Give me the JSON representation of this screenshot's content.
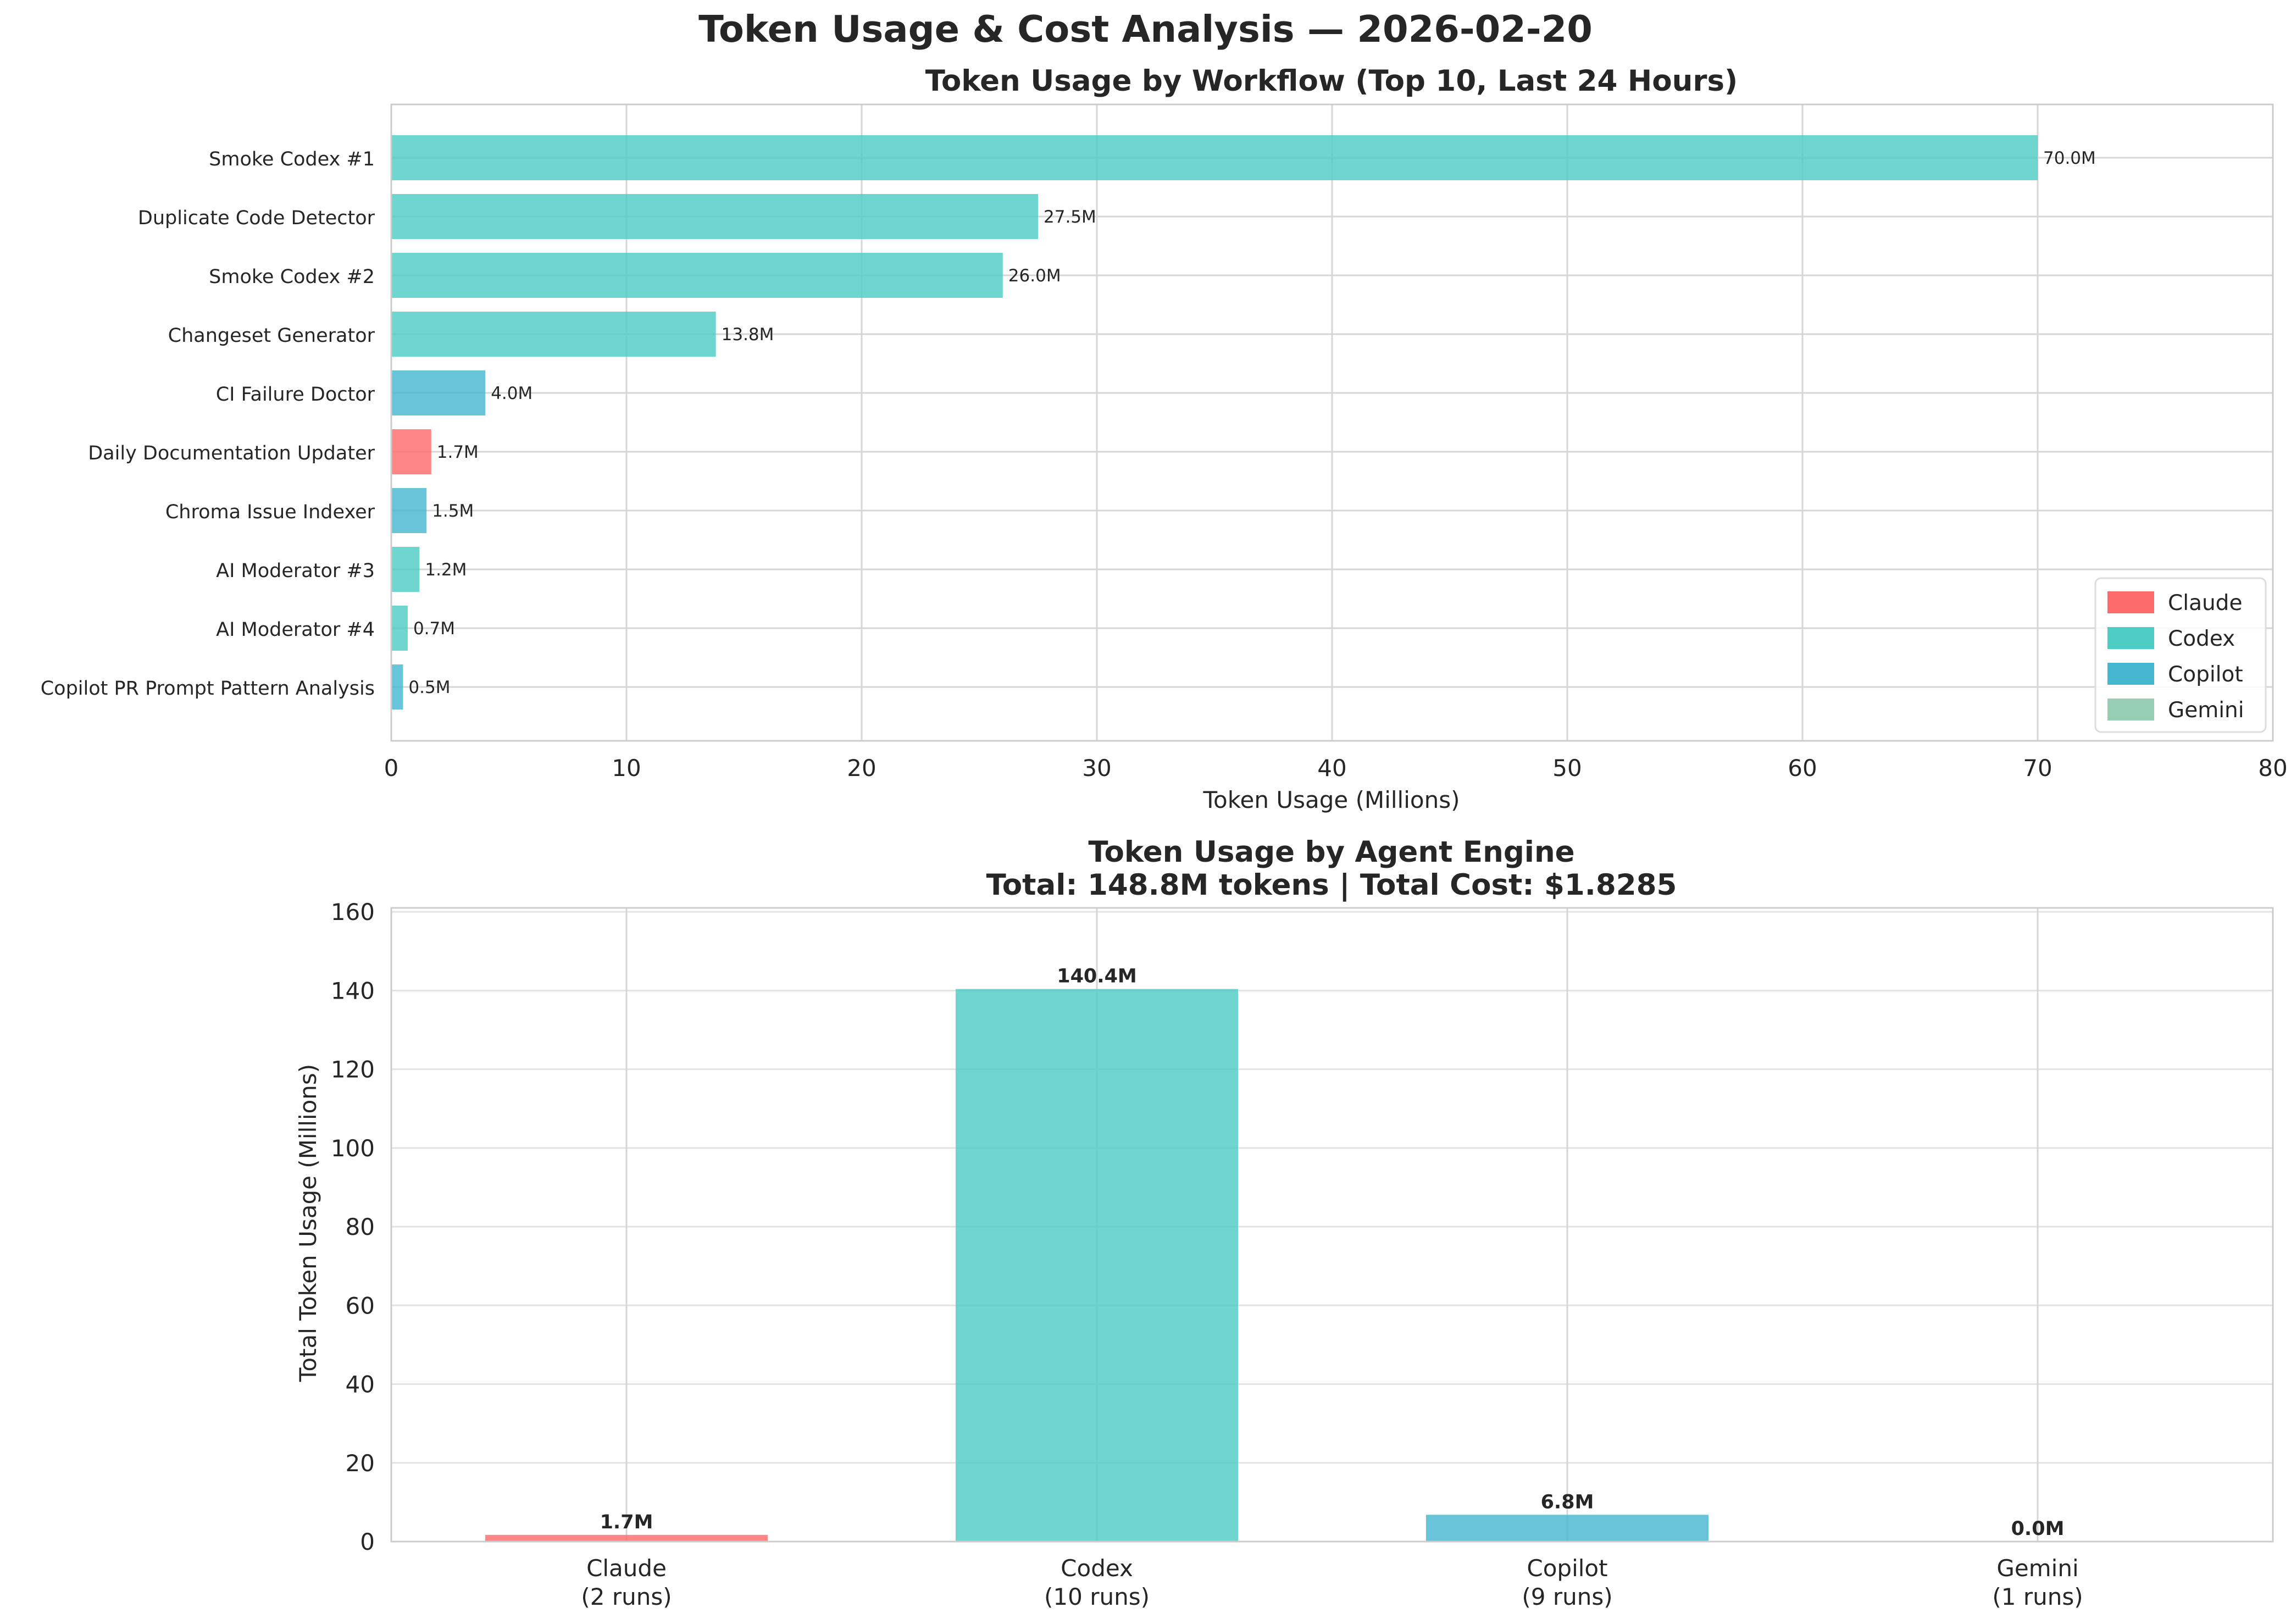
{
  "figure": {
    "title": "Token Usage & Cost Analysis — 2026-02-20"
  },
  "colors": {
    "Claude": "#ff6b6b",
    "Codex": "#4ecdc4",
    "Copilot": "#45b7d1",
    "Gemini": "#96ceb4",
    "grid": "#d6d6d6",
    "spine": "#cccccc",
    "text": "#262626"
  },
  "chart_data": [
    {
      "type": "bar",
      "orientation": "horizontal",
      "title": "Token Usage by Workflow (Top 10, Last 24 Hours)",
      "xlabel": "Token Usage (Millions)",
      "ylabel": "",
      "xlim": [
        0,
        80
      ],
      "xticks": [
        "0",
        "10",
        "20",
        "30",
        "40",
        "50",
        "60",
        "70",
        "80"
      ],
      "grid": true,
      "legend": {
        "placement": "lower-right",
        "entries": [
          "Claude",
          "Codex",
          "Copilot",
          "Gemini"
        ]
      },
      "categories": [
        "Smoke Codex #1",
        "Duplicate Code Detector",
        "Smoke Codex #2",
        "Changeset Generator",
        "CI Failure Doctor",
        "Daily Documentation Updater",
        "Chroma Issue Indexer",
        "AI Moderator #3",
        "AI Moderator #4",
        "Copilot PR Prompt Pattern Analysis"
      ],
      "values": [
        70.0,
        27.5,
        26.0,
        13.8,
        4.0,
        1.7,
        1.5,
        1.2,
        0.7,
        0.5
      ],
      "engines": [
        "Codex",
        "Codex",
        "Codex",
        "Codex",
        "Copilot",
        "Claude",
        "Copilot",
        "Codex",
        "Codex",
        "Copilot"
      ],
      "data_labels": [
        "70.0M",
        "27.5M",
        "26.0M",
        "13.8M",
        "4.0M",
        "1.7M",
        "1.5M",
        "1.2M",
        "0.7M",
        "0.5M"
      ]
    },
    {
      "type": "bar",
      "orientation": "vertical",
      "title": "Token Usage by Agent Engine",
      "subtitle": "Total: 148.8M tokens | Total Cost: $1.8285",
      "xlabel": "",
      "ylabel": "Total Token Usage (Millions)",
      "ylim": [
        0,
        161
      ],
      "yticks": [
        "0",
        "20",
        "40",
        "60",
        "80",
        "100",
        "120",
        "140",
        "160"
      ],
      "grid": true,
      "categories": [
        "Claude",
        "Codex",
        "Copilot",
        "Gemini"
      ],
      "category_notes": [
        "(2 runs)",
        "(10 runs)",
        "(9 runs)",
        "(1 runs)"
      ],
      "values": [
        1.7,
        140.4,
        6.8,
        0.0
      ],
      "data_labels": [
        "1.7M",
        "140.4M",
        "6.8M",
        "0.0M"
      ]
    }
  ]
}
